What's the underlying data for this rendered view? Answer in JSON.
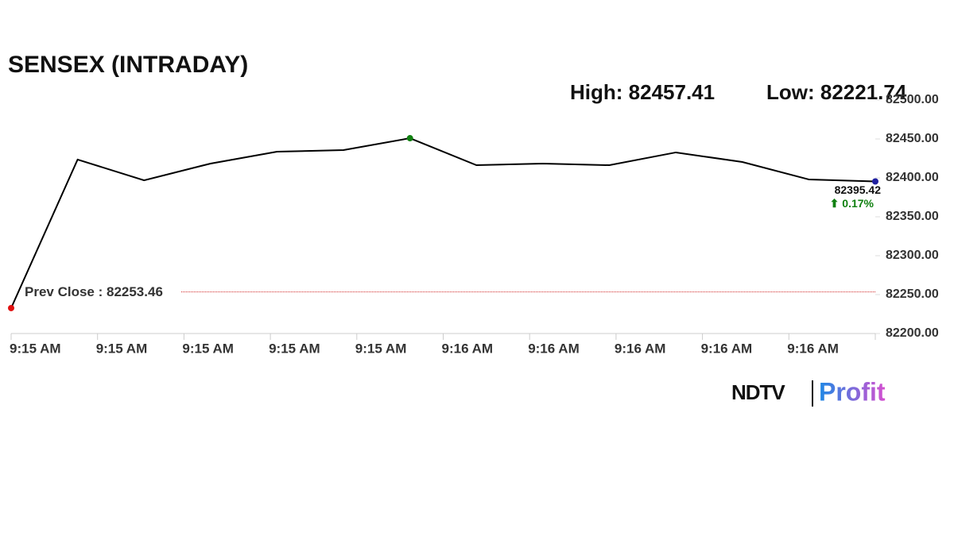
{
  "chart_data": {
    "type": "line",
    "title": "SENSEX (INTRADAY)",
    "high_label": "High: 82457.41",
    "low_label": "Low: 82221.74",
    "x_labels": [
      "9:15 AM",
      "9:15 AM",
      "9:15 AM",
      "9:15 AM",
      "9:15 AM",
      "9:16 AM",
      "9:16 AM",
      "9:16 AM",
      "9:16 AM",
      "9:16 AM"
    ],
    "values": [
      82232.7,
      82423.5,
      82396.9,
      82418.4,
      82433.7,
      82435.7,
      82451.0,
      82416.3,
      82418.4,
      82416.3,
      82432.7,
      82420.4,
      82398.0,
      82395.42
    ],
    "color": "#000000",
    "marker_colors": {
      "first": "#e01010",
      "high": "#108010",
      "last": "#2020a0"
    },
    "last_value_label": "82395.42",
    "change_label": "⬆ 0.17%",
    "change_color": "#108010",
    "prev_close": {
      "value": 82253.46,
      "label": "Prev Close : 82253.46",
      "color": "#d02020"
    },
    "ylim": [
      82200,
      82500
    ],
    "yticks": [
      {
        "value": 82200,
        "label": "82200.00"
      },
      {
        "value": 82250,
        "label": "82250.00"
      },
      {
        "value": 82300,
        "label": "82300.00"
      },
      {
        "value": 82350,
        "label": "82350.00"
      },
      {
        "value": 82400,
        "label": "82400.00"
      },
      {
        "value": 82450,
        "label": "82450.00"
      },
      {
        "value": 82500,
        "label": "82500.00"
      }
    ],
    "branding": {
      "left": "NDTV",
      "right": "Profit"
    }
  }
}
